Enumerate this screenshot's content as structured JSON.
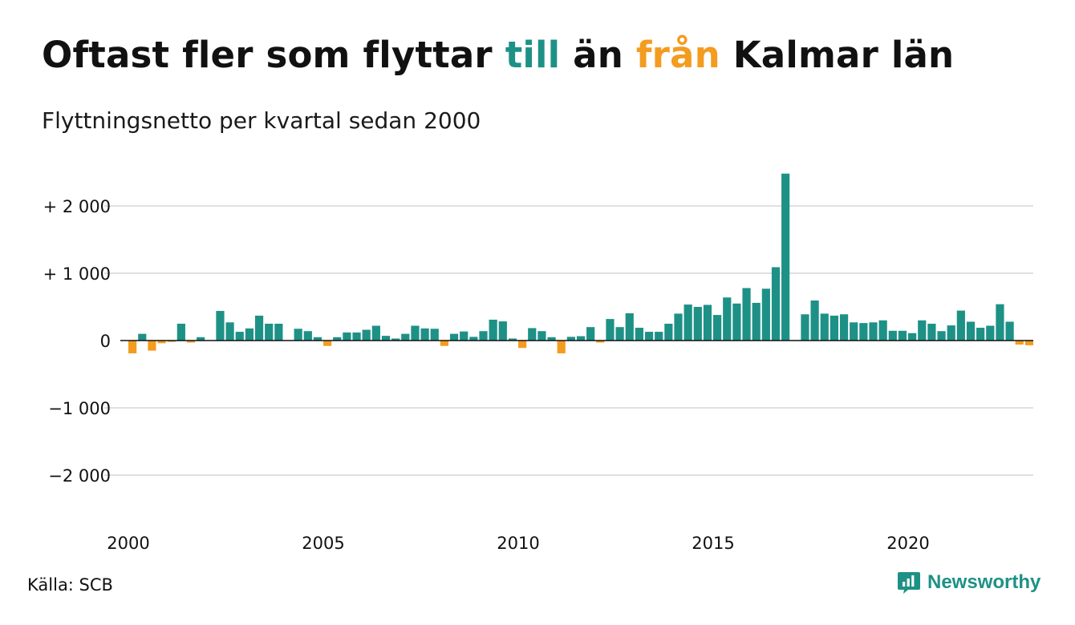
{
  "header": {
    "title_part1": "Oftast fler som flyttar ",
    "title_till": "till",
    "title_part2": " än ",
    "title_fran": "från",
    "title_part3": " Kalmar län",
    "subtitle": "Flyttningsnetto per kvartal sedan 2000"
  },
  "footer": {
    "source": "Källa: SCB",
    "brand": "Newsworthy",
    "brand_icon": "newsworthy-chart-logo-icon"
  },
  "colors": {
    "positive": "#1e9186",
    "negative": "#f39c1f",
    "grid": "#e0e0e0",
    "text": "#111111"
  },
  "chart_data": {
    "type": "bar",
    "ylim": [
      -2500,
      2600
    ],
    "yticks": [
      2000,
      1000,
      0,
      -1000,
      -2000
    ],
    "ytick_labels": [
      "+ 2 000",
      "+ 1 000",
      "0",
      "−1 000",
      "−2 000"
    ],
    "xtick_labels": [
      "2000",
      "2005",
      "2010",
      "2015",
      "2020"
    ],
    "xtick_years": [
      2000,
      2005,
      2010,
      2015,
      2020
    ],
    "start_year": 2000,
    "grid": true,
    "series": [
      {
        "values": [
          -190,
          100,
          -150,
          -40,
          -20,
          250,
          -30,
          50,
          0,
          440,
          270,
          130,
          180,
          370,
          250,
          250,
          0,
          175,
          140,
          50,
          -80,
          50,
          120,
          120,
          160,
          220,
          70,
          30,
          100,
          220,
          180,
          175,
          -80,
          100,
          135,
          55,
          140,
          310,
          285,
          30,
          -110,
          185,
          140,
          50,
          -190,
          55,
          65,
          200,
          -30,
          320,
          200,
          405,
          190,
          130,
          130,
          250,
          400,
          535,
          500,
          530,
          380,
          640,
          550,
          780,
          560,
          770,
          1090,
          2480,
          0,
          390,
          595,
          400,
          370,
          390,
          270,
          260,
          270,
          300,
          145,
          145,
          110,
          300,
          250,
          140,
          225,
          445,
          280,
          190,
          220,
          540,
          280,
          -60,
          -70
        ]
      }
    ]
  }
}
